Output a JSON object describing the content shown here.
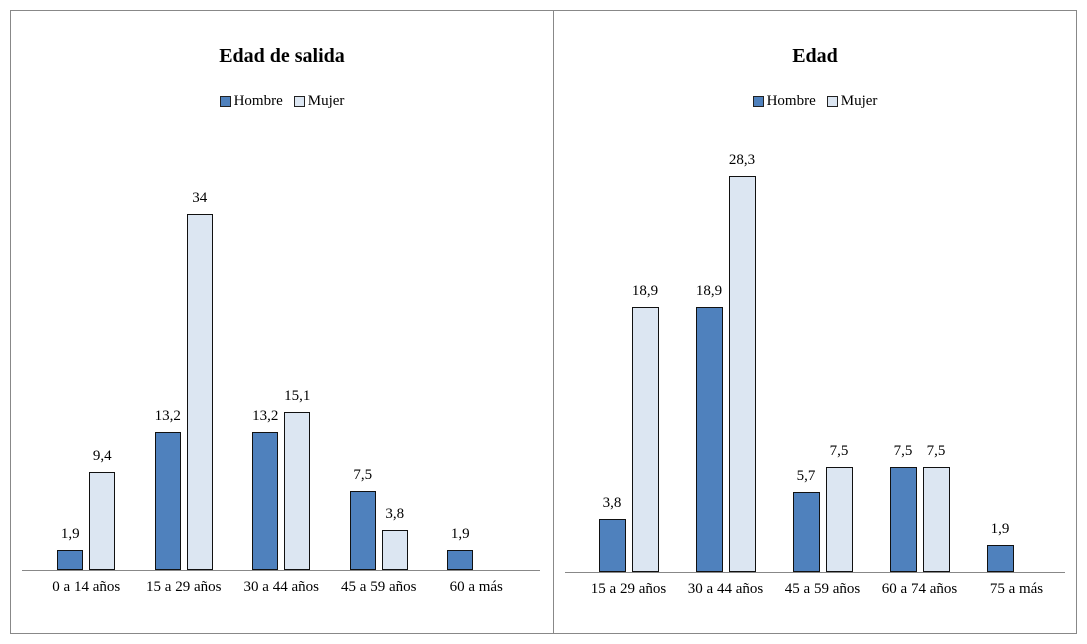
{
  "chart_data": [
    {
      "type": "bar",
      "title": "Edad de salida",
      "categories": [
        "0 a 14 años",
        "15 a 29 años",
        "30 a 44 años",
        "45 a 59 años",
        "60 a más"
      ],
      "series": [
        {
          "name": "Hombre",
          "color": "#4f81bd",
          "values": [
            1.9,
            13.2,
            13.2,
            7.5,
            1.9
          ],
          "value_labels": [
            "1,9",
            "13,2",
            "13,2",
            "7,5",
            "1,9"
          ]
        },
        {
          "name": "Mujer",
          "color": "#dce6f2",
          "values": [
            9.4,
            34,
            15.1,
            3.8,
            null
          ],
          "value_labels": [
            "9,4",
            "34",
            "15,1",
            "3,8",
            null
          ]
        }
      ],
      "ylim": [
        0,
        40
      ]
    },
    {
      "type": "bar",
      "title": "Edad",
      "categories": [
        "15 a 29 años",
        "30 a 44 años",
        "45 a 59 años",
        "60 a 74 años",
        "75 a más"
      ],
      "series": [
        {
          "name": "Hombre",
          "color": "#4f81bd",
          "values": [
            3.8,
            18.9,
            5.7,
            7.5,
            1.9
          ],
          "value_labels": [
            "3,8",
            "18,9",
            "5,7",
            "7,5",
            "1,9"
          ]
        },
        {
          "name": "Mujer",
          "color": "#dce6f2",
          "values": [
            18.9,
            28.3,
            7.5,
            7.5,
            null
          ],
          "value_labels": [
            "18,9",
            "28,3",
            "7,5",
            "7,5",
            null
          ]
        }
      ],
      "ylim": [
        0,
        30
      ]
    }
  ]
}
